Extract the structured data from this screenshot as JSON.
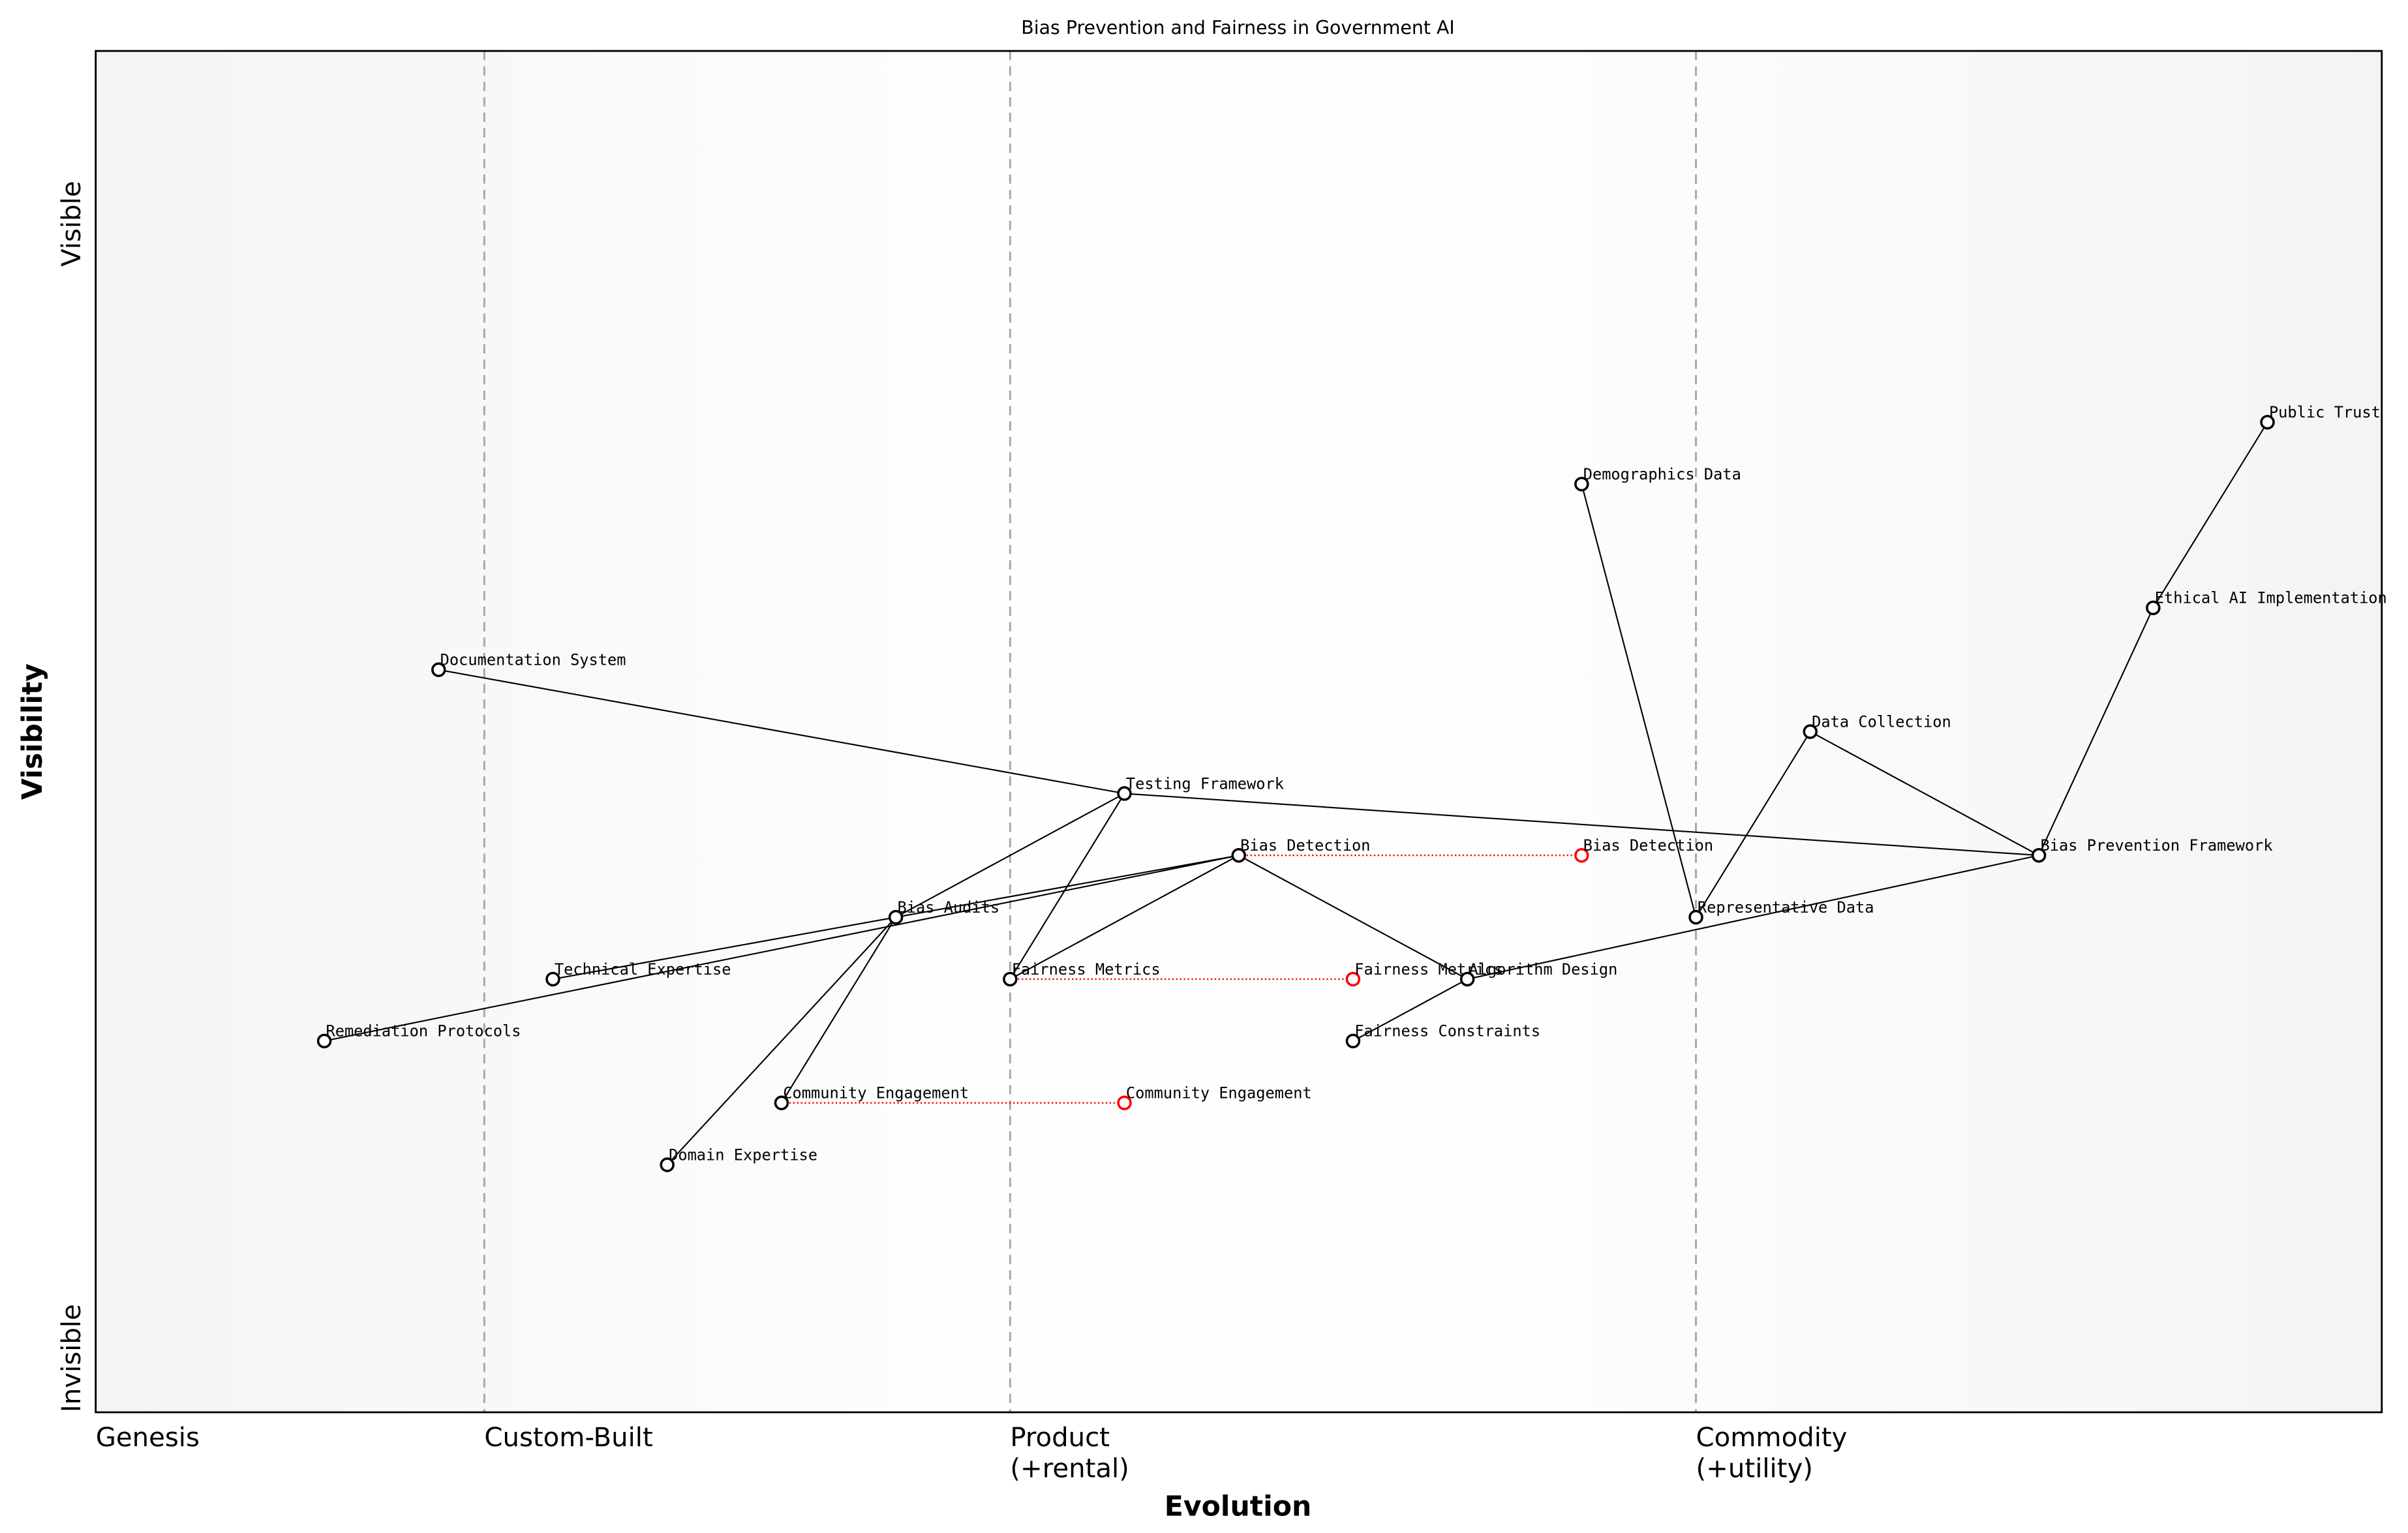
{
  "chart_data": {
    "type": "scatter",
    "subtype": "wardley-map",
    "title": "Bias Prevention and Fairness in Government AI",
    "xlabel": "Evolution",
    "ylabel": "Visibility",
    "xlim": [
      0,
      1
    ],
    "ylim": [
      0,
      1.1
    ],
    "grid": false,
    "stages": [
      {
        "label": "Genesis",
        "x": 0.0
      },
      {
        "label": "Custom-Built",
        "x": 0.17
      },
      {
        "label": "Product\n(+rental)",
        "x": 0.4
      },
      {
        "label": "Commodity\n(+utility)",
        "x": 0.7
      }
    ],
    "stage_lines": [
      0.17,
      0.4,
      0.7
    ],
    "y_labels": {
      "top": "Visible",
      "bottom": "Invisible"
    },
    "components": [
      {
        "name": "Public Trust",
        "x": 0.95,
        "y": 0.8
      },
      {
        "name": "Ethical AI Implementation",
        "x": 0.9,
        "y": 0.65
      },
      {
        "name": "Demographics Data",
        "x": 0.65,
        "y": 0.75
      },
      {
        "name": "Documentation System",
        "x": 0.15,
        "y": 0.6
      },
      {
        "name": "Data Collection",
        "x": 0.75,
        "y": 0.55
      },
      {
        "name": "Testing Framework",
        "x": 0.45,
        "y": 0.5
      },
      {
        "name": "Bias Prevention Framework",
        "x": 0.85,
        "y": 0.45
      },
      {
        "name": "Bias Detection",
        "x": 0.5,
        "y": 0.45
      },
      {
        "name": "Representative Data",
        "x": 0.7,
        "y": 0.4
      },
      {
        "name": "Bias Audits",
        "x": 0.35,
        "y": 0.4
      },
      {
        "name": "Fairness Metrics",
        "x": 0.4,
        "y": 0.35
      },
      {
        "name": "Algorithm Design",
        "x": 0.6,
        "y": 0.35
      },
      {
        "name": "Technical Expertise",
        "x": 0.2,
        "y": 0.35
      },
      {
        "name": "Fairness Constraints",
        "x": 0.55,
        "y": 0.3
      },
      {
        "name": "Remediation Protocols",
        "x": 0.1,
        "y": 0.3
      },
      {
        "name": "Community Engagement",
        "x": 0.3,
        "y": 0.25
      },
      {
        "name": "Domain Expertise",
        "x": 0.25,
        "y": 0.2
      }
    ],
    "links": [
      [
        "Public Trust",
        "Ethical AI Implementation"
      ],
      [
        "Ethical AI Implementation",
        "Bias Prevention Framework"
      ],
      [
        "Bias Prevention Framework",
        "Data Collection"
      ],
      [
        "Bias Prevention Framework",
        "Testing Framework"
      ],
      [
        "Bias Prevention Framework",
        "Algorithm Design"
      ],
      [
        "Data Collection",
        "Representative Data"
      ],
      [
        "Demographics Data",
        "Representative Data"
      ],
      [
        "Documentation System",
        "Testing Framework"
      ],
      [
        "Testing Framework",
        "Bias Audits"
      ],
      [
        "Testing Framework",
        "Fairness Metrics"
      ],
      [
        "Bias Detection",
        "Fairness Metrics"
      ],
      [
        "Bias Detection",
        "Algorithm Design"
      ],
      [
        "Bias Detection",
        "Bias Audits"
      ],
      [
        "Bias Detection",
        "Remediation Protocols"
      ],
      [
        "Bias Audits",
        "Technical Expertise"
      ],
      [
        "Bias Audits",
        "Community Engagement"
      ],
      [
        "Bias Audits",
        "Domain Expertise"
      ],
      [
        "Algorithm Design",
        "Fairness Constraints"
      ]
    ],
    "evolutions": [
      {
        "name": "Bias Detection",
        "from_x": 0.5,
        "to_x": 0.65,
        "y": 0.45
      },
      {
        "name": "Fairness Metrics",
        "from_x": 0.4,
        "to_x": 0.55,
        "y": 0.35
      },
      {
        "name": "Community Engagement",
        "from_x": 0.3,
        "to_x": 0.45,
        "y": 0.25
      }
    ],
    "colors": {
      "node": "#000000",
      "evolved_node": "#ff0000",
      "evolution_line": "#ff0000",
      "stage_line": "#aaaaaa"
    }
  }
}
